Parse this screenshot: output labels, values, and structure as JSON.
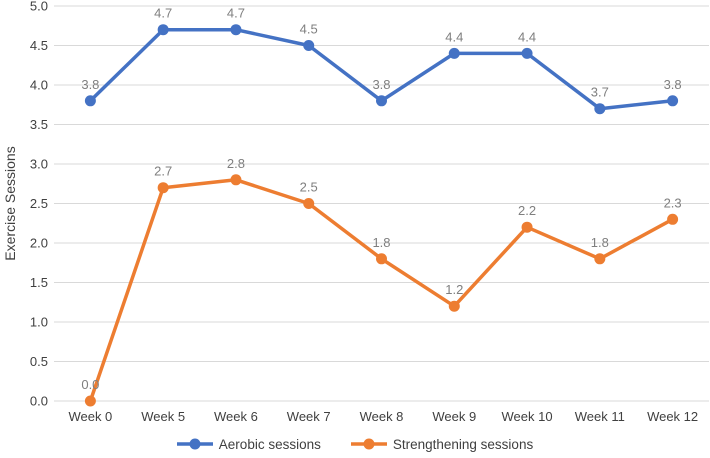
{
  "chart_data": {
    "type": "line",
    "categories": [
      "Week 0",
      "Week 5",
      "Week 6",
      "Week 7",
      "Week 8",
      "Week 9",
      "Week 10",
      "Week 11",
      "Week 12"
    ],
    "series": [
      {
        "name": "Aerobic sessions",
        "color": "#4472C4",
        "values": [
          3.8,
          4.7,
          4.7,
          4.5,
          3.8,
          4.4,
          4.4,
          3.7,
          3.8
        ],
        "point_labels": [
          "3.8",
          "4.7",
          "4.7",
          "4.5",
          "3.8",
          "4.4",
          "4.4",
          "3.7",
          "3.8"
        ]
      },
      {
        "name": "Strengthening sessions",
        "color": "#ED7D31",
        "values": [
          0.0,
          2.7,
          2.8,
          2.5,
          1.8,
          1.2,
          2.2,
          1.8,
          2.3
        ],
        "point_labels": [
          "0.0",
          "2.7",
          "2.8",
          "2.5",
          "1.8",
          "1.2",
          "2.2",
          "1.8",
          "2.3"
        ]
      }
    ],
    "title": "",
    "xlabel": "",
    "ylabel": "Exercise Sessions",
    "ylim": [
      0,
      5
    ],
    "ytick_step": 0.5,
    "yticks": [
      "0.0",
      "0.5",
      "1.0",
      "1.5",
      "2.0",
      "2.5",
      "3.0",
      "3.5",
      "4.0",
      "4.5",
      "5.0"
    ],
    "grid": "horizontal",
    "legend_position": "bottom-center",
    "colors": {
      "gridline": "#D9D9D9",
      "axis_text": "#404040",
      "data_label": "#7F7F7F",
      "background": "#FFFFFF"
    }
  }
}
